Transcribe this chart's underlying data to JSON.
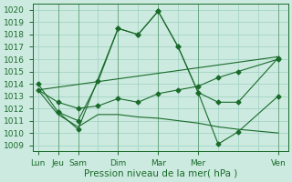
{
  "bg_color": "#cceae0",
  "grid_color": "#9ecfbf",
  "line_color": "#1a6b2a",
  "xlabel": "Pression niveau de la mer( hPa )",
  "xlabel_fontsize": 7.5,
  "tick_fontsize": 6.5,
  "ylim": [
    1008.5,
    1020.5
  ],
  "yticks": [
    1009,
    1010,
    1011,
    1012,
    1013,
    1014,
    1015,
    1016,
    1017,
    1018,
    1019,
    1020
  ],
  "xtick_positions": [
    0,
    2,
    4,
    8,
    12,
    16,
    20,
    24,
    28
  ],
  "xtick_labels": [
    "Lun",
    "Jeu",
    "Sam",
    "Dim",
    "Mar",
    "Mer",
    "Ven"
  ],
  "xtick_major": [
    0,
    2,
    4,
    8,
    12,
    16,
    24
  ],
  "xmax": 24,
  "series1_x": [
    0,
    2,
    4,
    6,
    8,
    10,
    12,
    14,
    16,
    18,
    20,
    24
  ],
  "series1_y": [
    1014.0,
    1011.7,
    1011.0,
    1014.2,
    1018.5,
    1018.0,
    1019.9,
    1017.0,
    1013.3,
    1012.5,
    1012.5,
    1016.1
  ],
  "series2_x": [
    0,
    2,
    4,
    6,
    8,
    10,
    12,
    14,
    16,
    18,
    20,
    24
  ],
  "series2_y": [
    1013.5,
    1012.5,
    1012.0,
    1012.2,
    1012.8,
    1012.5,
    1013.2,
    1013.5,
    1013.8,
    1014.5,
    1015.0,
    1016.0
  ],
  "series3_x": [
    0,
    24
  ],
  "series3_y": [
    1013.5,
    1016.2
  ],
  "series4_x": [
    0,
    2,
    4,
    6,
    8,
    10,
    12,
    14,
    16,
    18,
    20,
    24
  ],
  "series4_y": [
    1013.5,
    1011.5,
    1010.5,
    1011.5,
    1011.5,
    1011.3,
    1011.2,
    1011.0,
    1010.8,
    1010.5,
    1010.3,
    1010.0
  ],
  "series5_x": [
    2,
    4,
    8,
    10,
    12,
    14,
    16,
    18,
    20,
    24
  ],
  "series5_y": [
    1011.7,
    1010.3,
    1018.5,
    1018.0,
    1019.9,
    1017.0,
    1013.3,
    1009.1,
    1010.1,
    1013.0
  ],
  "marker": "D",
  "markersize": 2.5
}
